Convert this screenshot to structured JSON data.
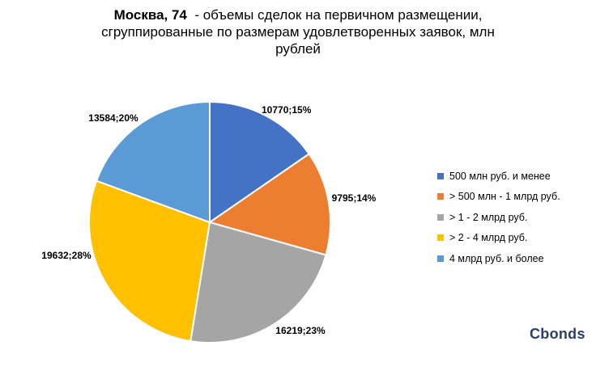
{
  "title": {
    "bold": "Москва, 74",
    "line1": "  - объемы сделок на первичном размещении,",
    "line2": "сгруппированные по размерам удовлетворенных заявок, млн",
    "line3": "рублей"
  },
  "chart_data": {
    "type": "pie",
    "start_angle_deg": 0,
    "direction": "clockwise",
    "legend_position": "right",
    "slices": [
      {
        "label": "500 млн руб. и менее",
        "value": 10770,
        "percent": "15%",
        "data_label": "10770;15%",
        "color": "#4472C4"
      },
      {
        "label": "> 500 млн - 1 млрд руб.",
        "value": 9795,
        "percent": "14%",
        "data_label": "9795;14%",
        "color": "#ED7D31"
      },
      {
        "label": "> 1 - 2 млрд руб.",
        "value": 16219,
        "percent": "23%",
        "data_label": "16219;23%",
        "color": "#A5A5A5"
      },
      {
        "label": "> 2 - 4 млрд руб.",
        "value": 19632,
        "percent": "28%",
        "data_label": "19632;28%",
        "color": "#FFC000"
      },
      {
        "label": "4 млрд руб. и более",
        "value": 13584,
        "percent": "20%",
        "data_label": "13584;20%",
        "color": "#5B9BD5"
      }
    ]
  },
  "logo": "Cbonds"
}
